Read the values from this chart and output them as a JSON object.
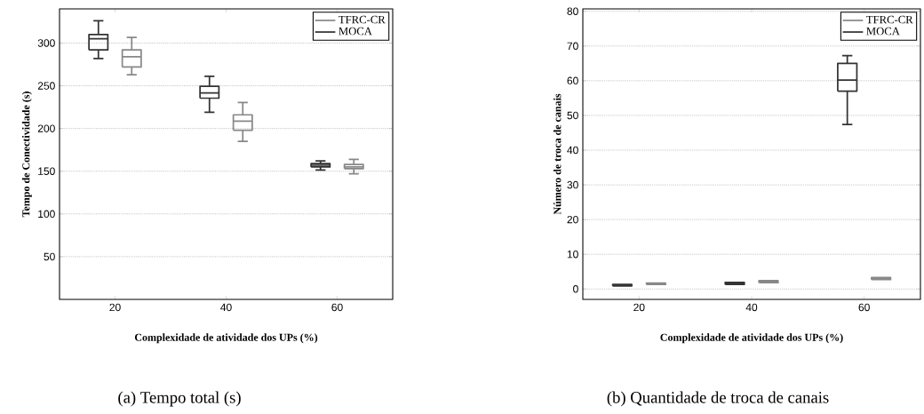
{
  "chart_data": [
    {
      "type": "box",
      "categories": [
        "20",
        "40",
        "60"
      ],
      "xlabel": "Complexidade de atividade dos UPs (%)",
      "ylabel": "Tempo de Conectividade (s)",
      "ylim": [
        0,
        340
      ],
      "yticks": [
        50,
        100,
        150,
        200,
        250,
        300
      ],
      "grid": "y",
      "legend": "top right",
      "annotations": [
        "(a) Tempo total (s)"
      ],
      "series": [
        {
          "name": "MOCA",
          "color": "#333333",
          "boxes": [
            {
              "low": 282,
              "q1": 292,
              "median": 305,
              "q3": 310,
              "high": 326
            },
            {
              "low": 219,
              "q1": 235.5,
              "median": 241.5,
              "q3": 249.5,
              "high": 261
            },
            {
              "low": 151.5,
              "q1": 155,
              "median": 157,
              "q3": 159,
              "high": 162
            }
          ]
        },
        {
          "name": "TFRC-CR",
          "color": "#888888",
          "boxes": [
            {
              "low": 263,
              "q1": 272,
              "median": 284,
              "q3": 292,
              "high": 306.5
            },
            {
              "low": 185,
              "q1": 198,
              "median": 208.5,
              "q3": 216,
              "high": 230.5
            },
            {
              "low": 147,
              "q1": 153,
              "median": 155,
              "q3": 158,
              "high": 164
            }
          ]
        }
      ]
    },
    {
      "type": "box",
      "categories": [
        "20",
        "40",
        "60"
      ],
      "xlabel": "Complexidade de atividade dos UPs (%)",
      "ylabel": "Número de troca de canais",
      "ylim": [
        -3,
        80.7
      ],
      "yticks": [
        0,
        10,
        20,
        30,
        40,
        50,
        60,
        70,
        80
      ],
      "grid": "y",
      "legend": "top right",
      "annotations": [
        "(b) Quantidade de troca de canais"
      ],
      "series": [
        {
          "name": "MOCA",
          "color": "#333333",
          "boxes": [
            {
              "low": 0.9,
              "q1": 0.9,
              "median": 1.1,
              "q3": 1.3,
              "high": 1.3
            },
            {
              "low": 1.3,
              "q1": 1.3,
              "median": 1.6,
              "q3": 1.9,
              "high": 1.9
            },
            {
              "low": 47.4,
              "q1": 57,
              "median": 60.2,
              "q3": 65,
              "high": 67.2
            }
          ]
        },
        {
          "name": "TFRC-CR",
          "color": "#888888",
          "boxes": [
            {
              "low": 1.3,
              "q1": 1.3,
              "median": 1.5,
              "q3": 1.7,
              "high": 1.7
            },
            {
              "low": 1.8,
              "q1": 1.8,
              "median": 2.1,
              "q3": 2.4,
              "high": 2.4
            },
            {
              "low": 2.7,
              "q1": 2.7,
              "median": 3.0,
              "q3": 3.3,
              "high": 3.3
            }
          ]
        }
      ]
    }
  ]
}
